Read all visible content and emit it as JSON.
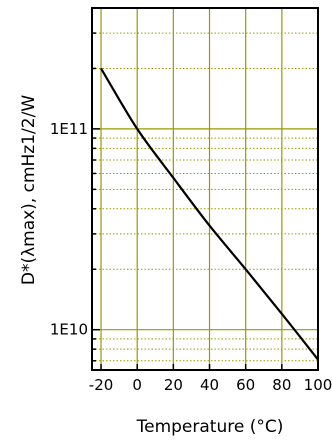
{
  "chart_data": {
    "type": "line",
    "xlabel": "Temperature (°C)",
    "ylabel": "D*(λmax), cmHz1/2/W",
    "y_scale": "log",
    "xlim": [
      -25,
      100
    ],
    "ylim": [
      6300000000,
      400000000000
    ],
    "x_ticks": [
      -20,
      0,
      20,
      40,
      60,
      80,
      100
    ],
    "x_tick_labels": [
      "-20",
      "0",
      "20",
      "40",
      "60",
      "80",
      "100"
    ],
    "y_ticks": [
      10000000000,
      100000000000
    ],
    "y_tick_labels": [
      "1E10",
      "1E11"
    ],
    "grid": true,
    "grid_color": "#9a9a00",
    "line_color": "#000000",
    "series": [
      {
        "x": [
          -20,
          0,
          20,
          40,
          60,
          80,
          100
        ],
        "y": [
          200000000000,
          100000000000,
          57000000000,
          33000000000,
          20000000000,
          12000000000,
          7100000000
        ]
      }
    ]
  }
}
